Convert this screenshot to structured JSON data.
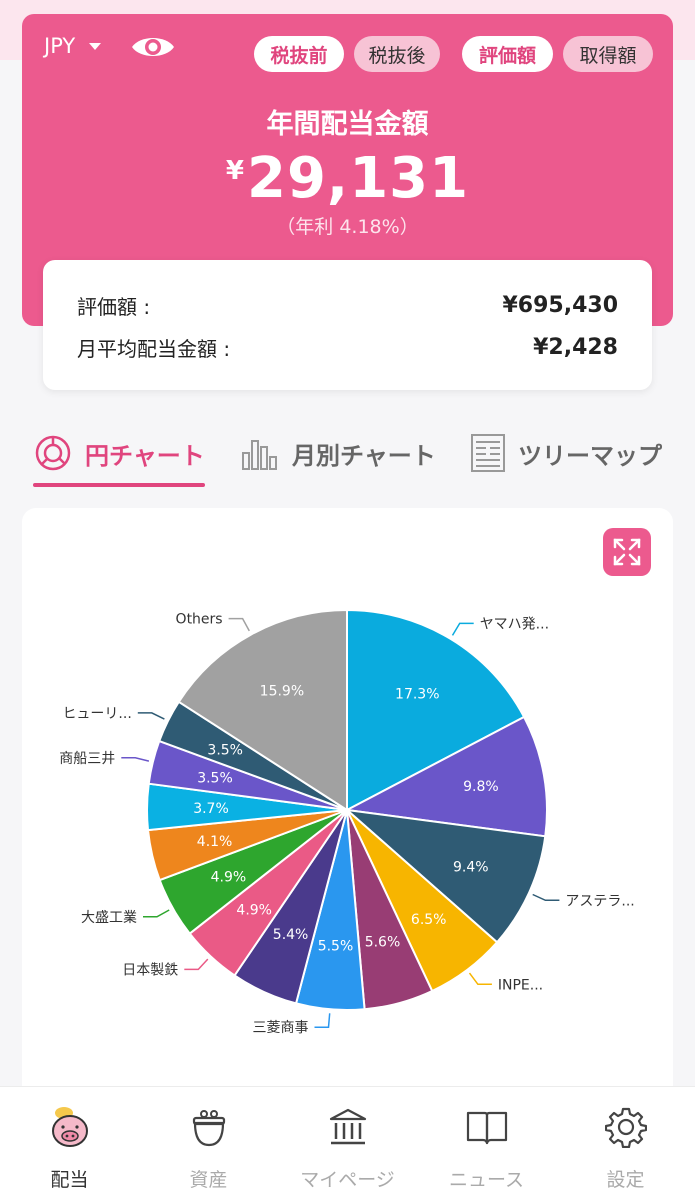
{
  "header": {
    "currency": "JPY",
    "toggles": [
      {
        "label": "税抜前",
        "active": true
      },
      {
        "label": "税抜後",
        "active": false
      },
      {
        "label": "評価額",
        "active": true
      },
      {
        "label": "取得額",
        "active": false
      }
    ],
    "title": "年間配当金額",
    "amount_symbol": "¥",
    "amount": "29,131",
    "yield": "（年利 4.18%）"
  },
  "summary": {
    "valuation_label": "評価額 :",
    "valuation_value": "¥695,430",
    "monthly_label": "月平均配当金額 :",
    "monthly_value": "¥2,428"
  },
  "tabs": [
    {
      "label": "円チャート",
      "icon": "pie-chart-icon",
      "active": true
    },
    {
      "label": "月別チャート",
      "icon": "bar-chart-icon",
      "active": false
    },
    {
      "label": "ツリーマップ",
      "icon": "treemap-icon",
      "active": false
    }
  ],
  "chart_data": {
    "type": "pie",
    "slices": [
      {
        "label": "ヤマハ発...",
        "value": 17.3,
        "pct": "17.3%",
        "color": "#0aabde"
      },
      {
        "label": "",
        "value": 9.8,
        "pct": "9.8%",
        "color": "#6a56c9"
      },
      {
        "label": "アステラ...",
        "value": 9.4,
        "pct": "9.4%",
        "color": "#2f5b74"
      },
      {
        "label": "INPE...",
        "value": 6.5,
        "pct": "6.5%",
        "color": "#f7b500"
      },
      {
        "label": "",
        "value": 5.6,
        "pct": "5.6%",
        "color": "#983d74"
      },
      {
        "label": "三菱商事",
        "value": 5.5,
        "pct": "5.5%",
        "color": "#2a97ef"
      },
      {
        "label": "",
        "value": 5.4,
        "pct": "5.4%",
        "color": "#4a3a8c"
      },
      {
        "label": "日本製鉄",
        "value": 4.9,
        "pct": "4.9%",
        "color": "#ea5a86"
      },
      {
        "label": "大盛工業",
        "value": 4.9,
        "pct": "4.9%",
        "color": "#2ea62e"
      },
      {
        "label": "",
        "value": 4.1,
        "pct": "4.1%",
        "color": "#ee861d"
      },
      {
        "label": "",
        "value": 3.7,
        "pct": "3.7%",
        "color": "#0ab1e3"
      },
      {
        "label": "商船三井",
        "value": 3.5,
        "pct": "3.5%",
        "color": "#6a56c9"
      },
      {
        "label": "ヒューリ...",
        "value": 3.5,
        "pct": "3.5%",
        "color": "#2f5b74"
      },
      {
        "label": "Others",
        "value": 15.9,
        "pct": "15.9%",
        "color": "#a1a1a1"
      }
    ]
  },
  "nav": [
    {
      "label": "配当",
      "icon": "piggy-bank-icon",
      "active": true
    },
    {
      "label": "資産",
      "icon": "wallet-icon",
      "active": false
    },
    {
      "label": "マイページ",
      "icon": "bank-building-icon",
      "active": false
    },
    {
      "label": "ニュース",
      "icon": "open-book-icon",
      "active": false
    },
    {
      "label": "設定",
      "icon": "gear-icon",
      "active": false
    }
  ]
}
